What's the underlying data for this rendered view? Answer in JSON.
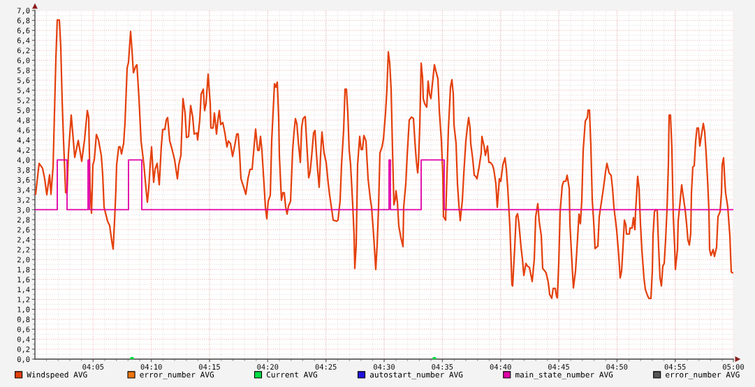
{
  "chart_data": {
    "type": "line",
    "xlim": [
      4,
      5
    ],
    "ylim": [
      0,
      7
    ],
    "xticks": [
      {
        "value": 4.0833,
        "label": "04:05"
      },
      {
        "value": 4.1667,
        "label": "04:10"
      },
      {
        "value": 4.25,
        "label": "04:15"
      },
      {
        "value": 4.3333,
        "label": "04:20"
      },
      {
        "value": 4.4167,
        "label": "04:25"
      },
      {
        "value": 4.5,
        "label": "04:30"
      },
      {
        "value": 4.5833,
        "label": "04:35"
      },
      {
        "value": 4.6667,
        "label": "04:40"
      },
      {
        "value": 4.75,
        "label": "04:45"
      },
      {
        "value": 4.8333,
        "label": "04:50"
      },
      {
        "value": 4.9167,
        "label": "04:55"
      },
      {
        "value": 5,
        "label": "05:00"
      }
    ],
    "yticks": [
      {
        "value": 0,
        "label": "0,0"
      },
      {
        "value": 0.2,
        "label": "0,2"
      },
      {
        "value": 0.4,
        "label": "0,4"
      },
      {
        "value": 0.6,
        "label": "0,6"
      },
      {
        "value": 0.8,
        "label": "0,8"
      },
      {
        "value": 1.0,
        "label": "1,0"
      },
      {
        "value": 1.2,
        "label": "1,2"
      },
      {
        "value": 1.4,
        "label": "1,4"
      },
      {
        "value": 1.6,
        "label": "1,6"
      },
      {
        "value": 1.8,
        "label": "1,8"
      },
      {
        "value": 2.0,
        "label": "2,0"
      },
      {
        "value": 2.2,
        "label": "2,2"
      },
      {
        "value": 2.4,
        "label": "2,4"
      },
      {
        "value": 2.6,
        "label": "2,6"
      },
      {
        "value": 2.8,
        "label": "2,8"
      },
      {
        "value": 3.0,
        "label": "3,0"
      },
      {
        "value": 3.2,
        "label": "3,2"
      },
      {
        "value": 3.4,
        "label": "3,4"
      },
      {
        "value": 3.6,
        "label": "3,6"
      },
      {
        "value": 3.8,
        "label": "3,8"
      },
      {
        "value": 4.0,
        "label": "4,0"
      },
      {
        "value": 4.2,
        "label": "4,2"
      },
      {
        "value": 4.4,
        "label": "4,4"
      },
      {
        "value": 4.6,
        "label": "4,6"
      },
      {
        "value": 4.8,
        "label": "4,8"
      },
      {
        "value": 5.0,
        "label": "5,0"
      },
      {
        "value": 5.2,
        "label": "5,2"
      },
      {
        "value": 5.4,
        "label": "5,4"
      },
      {
        "value": 5.6,
        "label": "5,6"
      },
      {
        "value": 5.8,
        "label": "5,8"
      },
      {
        "value": 6.0,
        "label": "6,0"
      },
      {
        "value": 6.2,
        "label": "6,2"
      },
      {
        "value": 6.4,
        "label": "6,4"
      },
      {
        "value": 6.6,
        "label": "6,6"
      },
      {
        "value": 6.8,
        "label": "6,8"
      },
      {
        "value": 7.0,
        "label": "7,0"
      }
    ],
    "grid": true,
    "legend": "bottom",
    "series": [
      {
        "name": "Windspeed AVG",
        "color": "#e4400c",
        "x": [
          4.001,
          4.006,
          4.011,
          4.014,
          4.017,
          4.021,
          4.023,
          4.026,
          4.03,
          4.032,
          4.035,
          4.037,
          4.039,
          4.041,
          4.044,
          4.046,
          4.048,
          4.052,
          4.057,
          4.062,
          4.067,
          4.071,
          4.075,
          4.077,
          4.079,
          4.081,
          4.083,
          4.085,
          4.088,
          4.091,
          4.095,
          4.097,
          4.099,
          4.104,
          4.107,
          4.11,
          4.112,
          4.114,
          4.116,
          4.117,
          4.12,
          4.122,
          4.124,
          4.127,
          4.129,
          4.132,
          4.134,
          4.137,
          4.139,
          4.141,
          4.144,
          4.146,
          4.149,
          4.152,
          4.156,
          4.159,
          4.161,
          4.163,
          4.165,
          4.167,
          4.17,
          4.172,
          4.175,
          4.178,
          4.181,
          4.183,
          4.186,
          4.188,
          4.19,
          4.193,
          4.196,
          4.2,
          4.204,
          4.206,
          4.209,
          4.211,
          4.212,
          4.215,
          4.217,
          4.22,
          4.223,
          4.226,
          4.228,
          4.232,
          4.233,
          4.236,
          4.238,
          4.241,
          4.243,
          4.245,
          4.248,
          4.251,
          4.252,
          4.255,
          4.257,
          4.26,
          4.262,
          4.264,
          4.266,
          4.269,
          4.272,
          4.275,
          4.277,
          4.28,
          4.283,
          4.286,
          4.289,
          4.291,
          4.293,
          4.295,
          4.299,
          4.302,
          4.305,
          4.308,
          4.311,
          4.313,
          4.316,
          4.319,
          4.321,
          4.323,
          4.325,
          4.328,
          4.33,
          4.332,
          4.334,
          4.337,
          4.339,
          4.342,
          4.343,
          4.345,
          4.347,
          4.349,
          4.35,
          4.353,
          4.355,
          4.357,
          4.359,
          4.361,
          4.363,
          4.366,
          4.369,
          4.371,
          4.373,
          4.375,
          4.377,
          4.38,
          4.382,
          4.384,
          4.387,
          4.389,
          4.392,
          4.394,
          4.396,
          4.399,
          4.401,
          4.403,
          4.405,
          4.407,
          4.409,
          4.411,
          4.414,
          4.417,
          4.42,
          4.422,
          4.425,
          4.427,
          4.432,
          4.434,
          4.437,
          4.439,
          4.442,
          4.444,
          4.446,
          4.448,
          4.45,
          4.452,
          4.455,
          4.457,
          4.458,
          4.46,
          4.462,
          4.465,
          4.467,
          4.469,
          4.471,
          4.474,
          4.477,
          4.48,
          4.482,
          4.485,
          4.488,
          4.49,
          4.492,
          4.494,
          4.497,
          4.499,
          4.502,
          4.504,
          4.506,
          4.508,
          4.51,
          4.512,
          4.514,
          4.516,
          4.517,
          4.519,
          4.521,
          4.524,
          4.527,
          4.528,
          4.531,
          4.533,
          4.536,
          4.539,
          4.542,
          4.544,
          4.546,
          4.548,
          4.549,
          4.551,
          4.553,
          4.555,
          4.556,
          4.558,
          4.561,
          4.563,
          4.565,
          4.567,
          4.569,
          4.572,
          4.574,
          4.577,
          4.579,
          4.582,
          4.584,
          4.585,
          4.588,
          4.59,
          4.592,
          4.595,
          4.597,
          4.599,
          4.6,
          4.603,
          4.605,
          4.607,
          4.609,
          4.612,
          4.614,
          4.617,
          4.619,
          4.621,
          4.623,
          4.624,
          4.627,
          4.629,
          4.631,
          4.633,
          4.636,
          4.639,
          4.64,
          4.643,
          4.645,
          4.648,
          4.65,
          4.652,
          4.655,
          4.657,
          4.66,
          4.662,
          4.665,
          4.667,
          4.67,
          4.673,
          4.675,
          4.677,
          4.68,
          4.683,
          4.684,
          4.687,
          4.689,
          4.691,
          4.693,
          4.696,
          4.698,
          4.7,
          4.703,
          4.705,
          4.708,
          4.71,
          4.712,
          4.715,
          4.717,
          4.72,
          4.722,
          4.725,
          4.727,
          4.73,
          4.732,
          4.735,
          4.737,
          4.74,
          4.742,
          4.745,
          4.747,
          4.748,
          4.75,
          4.752,
          4.755,
          4.757,
          4.76,
          4.762,
          4.765,
          4.766,
          4.769,
          4.771,
          4.774,
          4.776,
          4.779,
          4.781,
          4.783,
          4.785,
          4.788,
          4.791,
          4.792,
          4.794,
          4.796,
          4.798,
          4.8,
          4.802,
          4.806,
          4.808,
          4.812,
          4.814,
          4.817,
          4.819,
          4.822,
          4.825,
          4.827,
          4.829,
          4.833,
          4.836,
          4.838,
          4.84,
          4.842,
          4.844,
          4.846,
          4.847,
          4.851,
          4.852,
          4.855,
          4.857,
          4.859,
          4.86,
          4.862,
          4.863,
          4.865,
          4.867,
          4.869,
          4.872,
          4.874,
          4.877,
          4.879,
          4.882,
          4.884,
          4.885,
          4.887,
          4.889,
          4.891,
          4.893,
          4.895,
          4.897,
          4.899,
          4.901,
          4.903,
          4.905,
          4.907,
          4.908,
          4.91,
          4.912,
          4.914,
          4.916,
          4.917,
          4.92,
          4.921,
          4.923,
          4.926,
          4.928,
          4.931,
          4.933,
          4.935,
          4.937,
          4.939,
          4.94,
          4.942,
          4.944,
          4.946,
          4.948,
          4.95,
          4.952,
          4.954,
          4.957,
          4.959,
          4.961,
          4.963,
          4.965,
          4.966,
          4.968,
          4.971,
          4.973,
          4.976,
          4.978,
          4.981,
          4.983,
          4.984,
          4.986,
          4.988,
          4.989,
          4.992,
          4.995,
          4.997,
          4.999
        ],
        "values": [
          3.31,
          3.93,
          3.83,
          3.62,
          3.3,
          3.7,
          3.31,
          3.86,
          6.03,
          6.81,
          6.81,
          6.27,
          5.18,
          4.38,
          3.34,
          3.34,
          4.14,
          4.9,
          4.05,
          4.39,
          3.97,
          4.4,
          4.99,
          4.85,
          3.43,
          2.93,
          3.9,
          4.0,
          4.51,
          4.4,
          4.09,
          3.71,
          3.05,
          2.77,
          2.68,
          2.37,
          2.21,
          2.77,
          3.43,
          3.9,
          4.26,
          4.26,
          4.12,
          4.33,
          4.75,
          5.84,
          5.96,
          6.58,
          6.2,
          5.75,
          5.87,
          5.91,
          5.23,
          4.38,
          3.9,
          3.43,
          3.15,
          3.43,
          3.9,
          4.26,
          3.55,
          3.81,
          3.93,
          3.5,
          4.28,
          4.61,
          4.61,
          4.8,
          4.85,
          4.38,
          4.23,
          4.0,
          3.62,
          3.9,
          4.09,
          4.85,
          5.23,
          4.94,
          4.45,
          4.47,
          5.09,
          4.85,
          4.52,
          4.54,
          4.4,
          4.8,
          5.32,
          5.42,
          4.99,
          5.13,
          5.72,
          5.13,
          4.64,
          4.64,
          4.94,
          4.52,
          4.8,
          4.99,
          4.71,
          4.75,
          4.54,
          4.26,
          4.38,
          4.33,
          4.07,
          4.28,
          4.52,
          4.52,
          4.14,
          3.62,
          3.45,
          3.31,
          3.62,
          3.81,
          3.81,
          4.14,
          4.62,
          4.19,
          4.19,
          4.47,
          4.19,
          3.52,
          3.05,
          2.82,
          3.17,
          3.29,
          4.38,
          5.23,
          5.53,
          5.46,
          5.56,
          4.85,
          4.09,
          3.19,
          3.34,
          3.34,
          3.05,
          2.91,
          3.07,
          3.17,
          4.19,
          4.56,
          4.83,
          4.73,
          4.38,
          3.95,
          4.66,
          4.83,
          4.87,
          4.38,
          3.64,
          3.76,
          4.04,
          4.54,
          4.59,
          4.14,
          3.76,
          3.45,
          4.09,
          4.56,
          4.14,
          3.95,
          3.52,
          3.29,
          3.0,
          2.79,
          2.77,
          2.79,
          3.19,
          3.9,
          4.59,
          5.42,
          5.42,
          4.94,
          4.19,
          3.9,
          3.1,
          2.48,
          1.82,
          2.29,
          3.9,
          4.47,
          4.21,
          4.21,
          4.49,
          4.38,
          3.62,
          3.24,
          3.05,
          2.48,
          1.8,
          2.29,
          3.05,
          4.14,
          4.26,
          4.42,
          4.94,
          5.42,
          6.17,
          5.94,
          5.42,
          4.19,
          3.1,
          3.22,
          3.38,
          3.15,
          2.67,
          2.44,
          2.26,
          3.05,
          3.52,
          4.09,
          4.8,
          4.86,
          4.83,
          4.38,
          4.0,
          3.74,
          3.9,
          4.66,
          5.94,
          5.65,
          5.23,
          5.13,
          5.06,
          5.58,
          5.32,
          5.23,
          5.51,
          5.91,
          5.79,
          5.63,
          4.99,
          4.38,
          3.71,
          2.86,
          2.79,
          3.71,
          4.61,
          5.46,
          5.61,
          5.32,
          4.71,
          4.33,
          3.52,
          3.1,
          2.78,
          3.19,
          3.71,
          4.38,
          4.64,
          4.85,
          4.64,
          4.33,
          4.0,
          3.69,
          3.67,
          3.62,
          3.86,
          4.14,
          4.47,
          4.28,
          4.09,
          4.28,
          3.95,
          3.95,
          3.9,
          3.81,
          3.52,
          3.05,
          3.62,
          3.57,
          3.9,
          4.04,
          3.81,
          3.43,
          2.67,
          1.49,
          1.47,
          2.25,
          2.86,
          2.92,
          2.72,
          2.25,
          2.01,
          1.68,
          1.92,
          1.87,
          1.84,
          1.7,
          1.56,
          2.01,
          2.86,
          3.12,
          2.77,
          2.48,
          1.82,
          1.77,
          1.73,
          1.54,
          1.3,
          1.22,
          1.42,
          1.42,
          1.25,
          1.23,
          1.92,
          2.96,
          3.48,
          3.57,
          3.57,
          3.69,
          3.43,
          2.72,
          1.92,
          1.43,
          1.77,
          2.2,
          2.91,
          2.72,
          3.19,
          4.19,
          4.78,
          4.85,
          5.0,
          5.0,
          4.28,
          3.19,
          2.77,
          2.22,
          2.27,
          2.86,
          3.24,
          3.43,
          3.76,
          3.93,
          3.74,
          3.69,
          3.43,
          3.05,
          2.58,
          2.06,
          1.63,
          1.77,
          2.25,
          2.79,
          2.7,
          2.51,
          2.51,
          2.63,
          2.63,
          2.84,
          2.6,
          2.96,
          3.43,
          3.67,
          3.43,
          2.72,
          2.2,
          1.63,
          1.4,
          1.28,
          1.22,
          1.22,
          1.77,
          2.48,
          2.96,
          3.0,
          2.98,
          2.25,
          1.63,
          1.47,
          1.87,
          1.92,
          2.39,
          3.0,
          3.9,
          4.9,
          4.9,
          4.23,
          2.86,
          2.25,
          1.8,
          2.2,
          2.77,
          3.05,
          3.5,
          3.29,
          3.0,
          2.72,
          2.39,
          2.29,
          2.53,
          3.33,
          3.86,
          3.88,
          4.38,
          4.64,
          4.64,
          4.28,
          4.47,
          4.73,
          4.56,
          4.14,
          3.62,
          3.0,
          2.2,
          2.08,
          2.2,
          2.06,
          2.25,
          2.86,
          2.96,
          3.33,
          3.9,
          4.04,
          3.52,
          3.33,
          3.05,
          2.48,
          1.75,
          1.73
        ]
      },
      {
        "name": "error_number AVG",
        "color": "#ee7711"
      },
      {
        "name": "Current AVG",
        "color": "#00dd44",
        "type": "scatter",
        "x": [
          4.139,
          4.572
        ],
        "values": [
          0,
          0
        ]
      },
      {
        "name": "autostart_number AVG",
        "color": "#2211dd"
      },
      {
        "name": "main_state_number AVG",
        "color": "#e000a8",
        "type": "step",
        "x": [
          4.0,
          4.032,
          4.046,
          4.076,
          4.078,
          4.134,
          4.153,
          4.507,
          4.509,
          4.553,
          4.586,
          5.0
        ],
        "values": [
          3,
          4,
          3,
          4,
          3,
          4,
          3,
          4,
          3,
          4,
          3,
          3
        ]
      },
      {
        "name": "error_number AVG",
        "color": "#555555"
      }
    ]
  }
}
